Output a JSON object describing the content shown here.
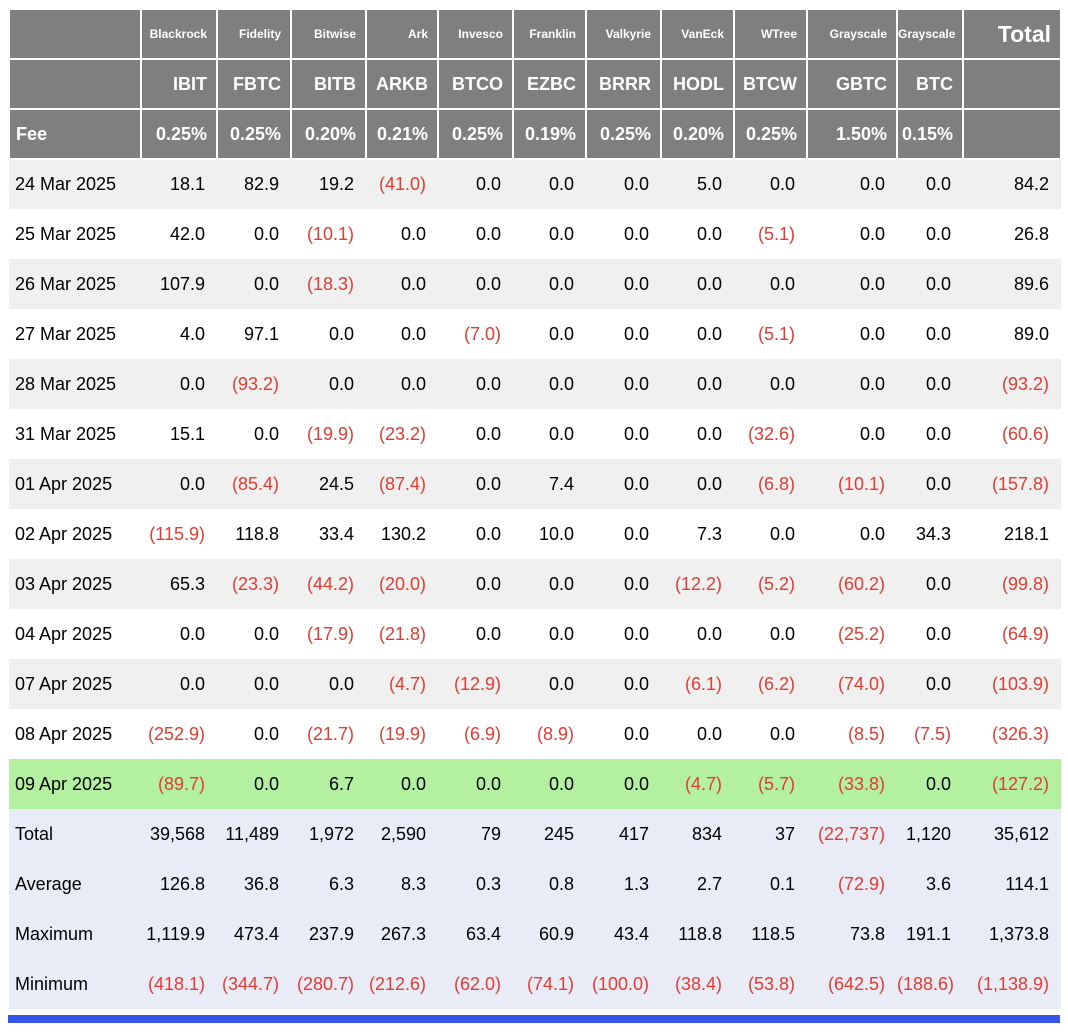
{
  "chart_data": {
    "type": "table",
    "fee_label": "Fee",
    "total_label": "Total",
    "columns": [
      {
        "issuer": "Blackrock",
        "ticker": "IBIT",
        "fee": "0.25%"
      },
      {
        "issuer": "Fidelity",
        "ticker": "FBTC",
        "fee": "0.25%"
      },
      {
        "issuer": "Bitwise",
        "ticker": "BITB",
        "fee": "0.20%"
      },
      {
        "issuer": "Ark",
        "ticker": "ARKB",
        "fee": "0.21%"
      },
      {
        "issuer": "Invesco",
        "ticker": "BTCO",
        "fee": "0.25%"
      },
      {
        "issuer": "Franklin",
        "ticker": "EZBC",
        "fee": "0.19%"
      },
      {
        "issuer": "Valkyrie",
        "ticker": "BRRR",
        "fee": "0.25%"
      },
      {
        "issuer": "VanEck",
        "ticker": "HODL",
        "fee": "0.20%"
      },
      {
        "issuer": "WTree",
        "ticker": "BTCW",
        "fee": "0.25%"
      },
      {
        "issuer": "Grayscale",
        "ticker": "GBTC",
        "fee": "1.50%"
      },
      {
        "issuer": "Grayscale",
        "ticker": "BTC",
        "fee": "0.15%"
      }
    ],
    "rows": [
      {
        "date": "24 Mar 2025",
        "highlight": false,
        "values": [
          "18.1",
          "82.9",
          "19.2",
          "(41.0)",
          "0.0",
          "0.0",
          "0.0",
          "5.0",
          "0.0",
          "0.0",
          "0.0"
        ],
        "total": "84.2"
      },
      {
        "date": "25 Mar 2025",
        "highlight": false,
        "values": [
          "42.0",
          "0.0",
          "(10.1)",
          "0.0",
          "0.0",
          "0.0",
          "0.0",
          "0.0",
          "(5.1)",
          "0.0",
          "0.0"
        ],
        "total": "26.8"
      },
      {
        "date": "26 Mar 2025",
        "highlight": false,
        "values": [
          "107.9",
          "0.0",
          "(18.3)",
          "0.0",
          "0.0",
          "0.0",
          "0.0",
          "0.0",
          "0.0",
          "0.0",
          "0.0"
        ],
        "total": "89.6"
      },
      {
        "date": "27 Mar 2025",
        "highlight": false,
        "values": [
          "4.0",
          "97.1",
          "0.0",
          "0.0",
          "(7.0)",
          "0.0",
          "0.0",
          "0.0",
          "(5.1)",
          "0.0",
          "0.0"
        ],
        "total": "89.0"
      },
      {
        "date": "28 Mar 2025",
        "highlight": false,
        "values": [
          "0.0",
          "(93.2)",
          "0.0",
          "0.0",
          "0.0",
          "0.0",
          "0.0",
          "0.0",
          "0.0",
          "0.0",
          "0.0"
        ],
        "total": "(93.2)"
      },
      {
        "date": "31 Mar 2025",
        "highlight": false,
        "values": [
          "15.1",
          "0.0",
          "(19.9)",
          "(23.2)",
          "0.0",
          "0.0",
          "0.0",
          "0.0",
          "(32.6)",
          "0.0",
          "0.0"
        ],
        "total": "(60.6)"
      },
      {
        "date": "01 Apr 2025",
        "highlight": false,
        "values": [
          "0.0",
          "(85.4)",
          "24.5",
          "(87.4)",
          "0.0",
          "7.4",
          "0.0",
          "0.0",
          "(6.8)",
          "(10.1)",
          "0.0"
        ],
        "total": "(157.8)"
      },
      {
        "date": "02 Apr 2025",
        "highlight": false,
        "values": [
          "(115.9)",
          "118.8",
          "33.4",
          "130.2",
          "0.0",
          "10.0",
          "0.0",
          "7.3",
          "0.0",
          "0.0",
          "34.3"
        ],
        "total": "218.1"
      },
      {
        "date": "03 Apr 2025",
        "highlight": false,
        "values": [
          "65.3",
          "(23.3)",
          "(44.2)",
          "(20.0)",
          "0.0",
          "0.0",
          "0.0",
          "(12.2)",
          "(5.2)",
          "(60.2)",
          "0.0"
        ],
        "total": "(99.8)"
      },
      {
        "date": "04 Apr 2025",
        "highlight": false,
        "values": [
          "0.0",
          "0.0",
          "(17.9)",
          "(21.8)",
          "0.0",
          "0.0",
          "0.0",
          "0.0",
          "0.0",
          "(25.2)",
          "0.0"
        ],
        "total": "(64.9)"
      },
      {
        "date": "07 Apr 2025",
        "highlight": false,
        "values": [
          "0.0",
          "0.0",
          "0.0",
          "(4.7)",
          "(12.9)",
          "0.0",
          "0.0",
          "(6.1)",
          "(6.2)",
          "(74.0)",
          "0.0"
        ],
        "total": "(103.9)"
      },
      {
        "date": "08 Apr 2025",
        "highlight": false,
        "values": [
          "(252.9)",
          "0.0",
          "(21.7)",
          "(19.9)",
          "(6.9)",
          "(8.9)",
          "0.0",
          "0.0",
          "0.0",
          "(8.5)",
          "(7.5)"
        ],
        "total": "(326.3)"
      },
      {
        "date": "09 Apr 2025",
        "highlight": true,
        "values": [
          "(89.7)",
          "0.0",
          "6.7",
          "0.0",
          "0.0",
          "0.0",
          "0.0",
          "(4.7)",
          "(5.7)",
          "(33.8)",
          "0.0"
        ],
        "total": "(127.2)"
      }
    ],
    "summary": [
      {
        "label": "Total",
        "values": [
          "39,568",
          "11,489",
          "1,972",
          "2,590",
          "79",
          "245",
          "417",
          "834",
          "37",
          "(22,737)",
          "1,120"
        ],
        "total": "35,612"
      },
      {
        "label": "Average",
        "values": [
          "126.8",
          "36.8",
          "6.3",
          "8.3",
          "0.3",
          "0.8",
          "1.3",
          "2.7",
          "0.1",
          "(72.9)",
          "3.6"
        ],
        "total": "114.1"
      },
      {
        "label": "Maximum",
        "values": [
          "1,119.9",
          "473.4",
          "237.9",
          "267.3",
          "63.4",
          "60.9",
          "43.4",
          "118.8",
          "118.5",
          "73.8",
          "191.1"
        ],
        "total": "1,373.8"
      },
      {
        "label": "Minimum",
        "values": [
          "(418.1)",
          "(344.7)",
          "(280.7)",
          "(212.6)",
          "(62.0)",
          "(74.1)",
          "(100.0)",
          "(38.4)",
          "(53.8)",
          "(642.5)",
          "(188.6)"
        ],
        "total": "(1,138.9)"
      }
    ],
    "colors": {
      "header_bg": "#7f7f7f",
      "header_text": "#ffffff",
      "negative": "#e03c31",
      "row_alt": "#f0f0f0",
      "highlight": "#b3f0a0",
      "summary_bg": "#e9ecf7",
      "divider_blue": "#3556e8"
    }
  }
}
